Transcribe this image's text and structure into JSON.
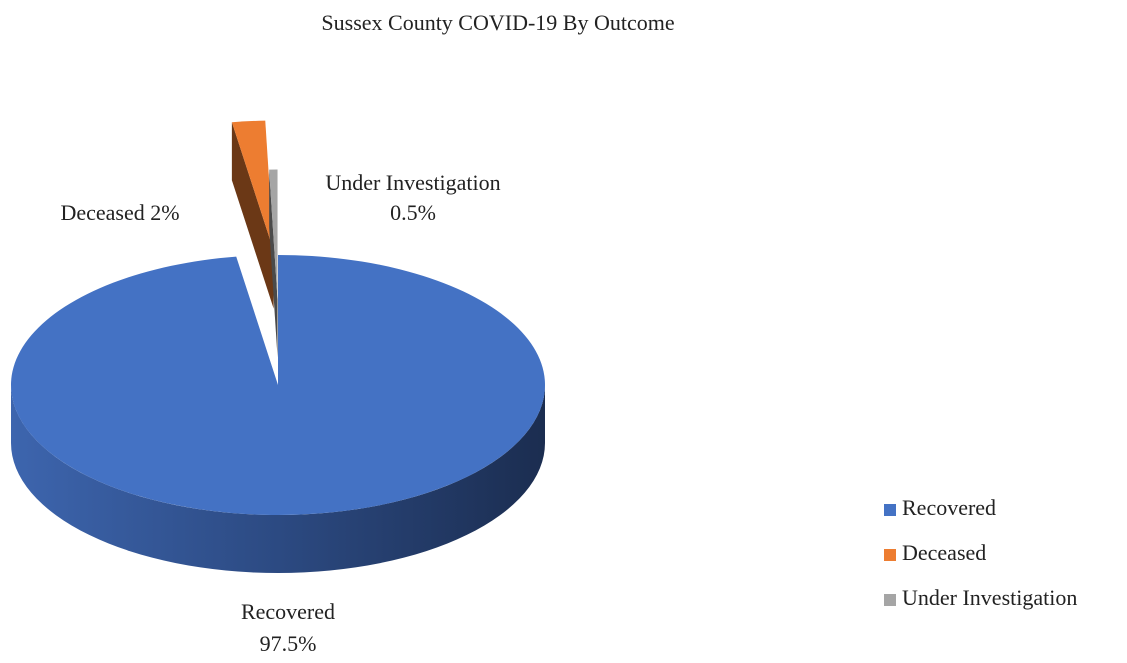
{
  "chart_data": {
    "type": "pie",
    "title": "Sussex County COVID-19 By Outcome",
    "categories": [
      "Recovered",
      "Deceased",
      "Under Investigation"
    ],
    "values": [
      97.5,
      2,
      0.5
    ],
    "value_labels": [
      "97.5%",
      "2%",
      "0.5%"
    ],
    "colors": [
      "#4472c4",
      "#ed7d31",
      "#a5a5a5"
    ],
    "legend": "right"
  }
}
